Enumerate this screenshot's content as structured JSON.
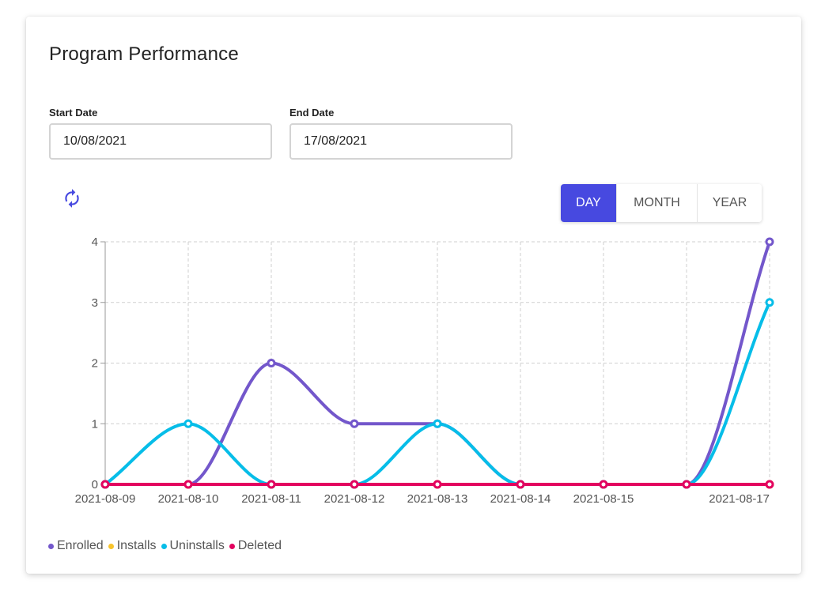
{
  "card": {
    "title": "Program Performance"
  },
  "filters": {
    "start_label": "Start Date",
    "start_value": "10/08/2021",
    "end_label": "End Date",
    "end_value": "17/08/2021"
  },
  "toolbar": {
    "refresh_icon": "refresh-icon",
    "periods": [
      "DAY",
      "MONTH",
      "YEAR"
    ],
    "active_period": "DAY"
  },
  "colors": {
    "accent": "#4749e0",
    "enrolled": "#7357cb",
    "installs": "#f8c42c",
    "uninstalls": "#06bde8",
    "deleted": "#e3035f"
  },
  "chart_data": {
    "type": "line",
    "title": "",
    "xlabel": "",
    "ylabel": "",
    "ylim": [
      0,
      4
    ],
    "yticks": [
      0,
      1,
      2,
      3,
      4
    ],
    "grid": true,
    "x": [
      0,
      1,
      2,
      3,
      4,
      5,
      6,
      7,
      8
    ],
    "tick_labels": [
      "2021-08-09",
      "2021-08-10",
      "2021-08-11",
      "2021-08-12",
      "2021-08-13",
      "2021-08-14",
      "2021-08-15",
      "",
      "2021-08-17"
    ],
    "series": [
      {
        "name": "Enrolled",
        "color": "#7357cb",
        "values": [
          0,
          0,
          2,
          1,
          1,
          0,
          0,
          0,
          4
        ]
      },
      {
        "name": "Installs",
        "color": "#f8c42c",
        "values": [
          0,
          0,
          0,
          0,
          0,
          0,
          0,
          0,
          0
        ]
      },
      {
        "name": "Uninstalls",
        "color": "#06bde8",
        "values": [
          0,
          1,
          0,
          0,
          1,
          0,
          0,
          0,
          3
        ]
      },
      {
        "name": "Deleted",
        "color": "#e3035f",
        "values": [
          0,
          0,
          0,
          0,
          0,
          0,
          0,
          0,
          0
        ]
      }
    ],
    "legend_position": "bottom-left"
  }
}
